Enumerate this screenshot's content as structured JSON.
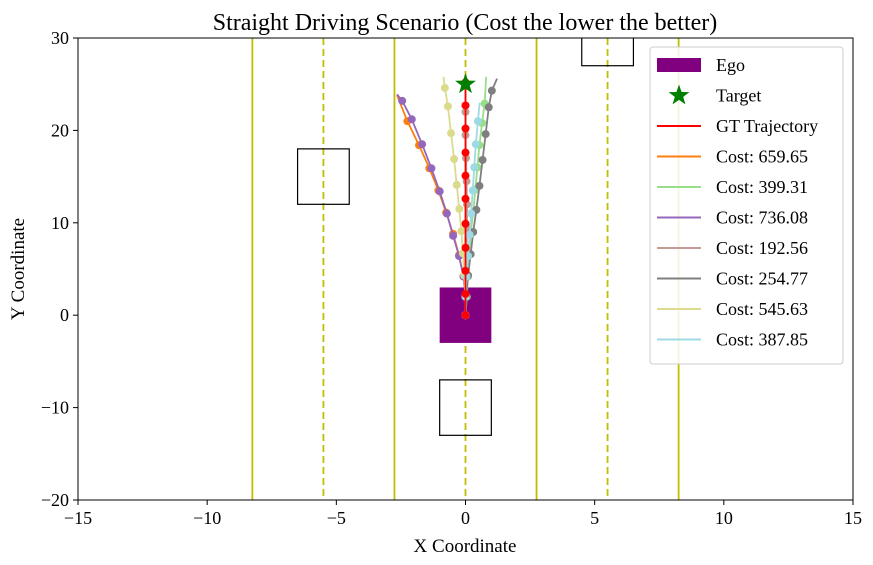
{
  "chart_data": {
    "type": "scatter",
    "title": "Straight Driving Scenario (Cost the lower the better)",
    "xlabel": "X Coordinate",
    "ylabel": "Y Coordinate",
    "xlim": [
      -15,
      15
    ],
    "ylim": [
      -20,
      30
    ],
    "xticks": [
      -15,
      -10,
      -5,
      0,
      5,
      10,
      15
    ],
    "xtick_labels": [
      "−15",
      "−10",
      "−5",
      "0",
      "5",
      "10",
      "15"
    ],
    "yticks": [
      -20,
      -10,
      0,
      10,
      20,
      30
    ],
    "ytick_labels": [
      "−20",
      "−10",
      "0",
      "10",
      "20",
      "30"
    ],
    "lane_lines": [
      {
        "x": -8.25,
        "style": "solid"
      },
      {
        "x": -5.5,
        "style": "dashed"
      },
      {
        "x": -2.75,
        "style": "solid"
      },
      {
        "x": 0,
        "style": "dashed"
      },
      {
        "x": 2.75,
        "style": "solid"
      },
      {
        "x": 5.5,
        "style": "dashed"
      },
      {
        "x": 8.25,
        "style": "solid"
      }
    ],
    "lane_color": "#bfbf00",
    "obstacles": [
      {
        "x": [
          -6.5,
          -4.5
        ],
        "y": [
          12,
          18
        ]
      },
      {
        "x": [
          -1,
          1
        ],
        "y": [
          -13,
          -7
        ]
      },
      {
        "x": [
          4.5,
          6.5
        ],
        "y": [
          27,
          33
        ]
      }
    ],
    "ego": {
      "label": "Ego",
      "x": [
        -1,
        1
      ],
      "y": [
        -3,
        3
      ],
      "color": "#800080"
    },
    "target": {
      "label": "Target",
      "x": 0,
      "y": 25,
      "color": "#008000"
    },
    "gt": {
      "label": "GT Trajectory",
      "color": "#ff0000",
      "x": [
        0,
        0,
        0,
        0,
        0,
        0,
        0,
        0,
        0,
        0,
        0,
        0
      ],
      "y": [
        0,
        2.3,
        4.8,
        7.3,
        9.9,
        12.6,
        15.1,
        17.6,
        20.2,
        22.7,
        25.2,
        26
      ]
    },
    "series": [
      {
        "label": "Cost: 659.65",
        "color": "#ff7f0e",
        "x": [
          0,
          0.02,
          -0.08,
          -0.25,
          -0.48,
          -0.75,
          -1.05,
          -1.4,
          -1.8,
          -2.25,
          -2.65
        ],
        "y": [
          0,
          2,
          4.2,
          6.5,
          8.8,
          11.1,
          13.5,
          15.9,
          18.4,
          21,
          23.8
        ]
      },
      {
        "label": "Cost: 399.31",
        "color": "#98df8a",
        "x": [
          0,
          0.05,
          0.1,
          0.15,
          0.2,
          0.3,
          0.38,
          0.46,
          0.54,
          0.64,
          0.74,
          0.8
        ],
        "y": [
          0,
          2,
          4.2,
          6.5,
          8.8,
          11.2,
          13.6,
          16,
          18.4,
          20.8,
          22.9,
          25.8
        ]
      },
      {
        "label": "Cost: 736.08",
        "color": "#9467bd",
        "x": [
          0,
          0,
          -0.08,
          -0.25,
          -0.48,
          -0.72,
          -1.0,
          -1.32,
          -1.68,
          -2.08,
          -2.45,
          -2.65
        ],
        "y": [
          0,
          2,
          4.2,
          6.4,
          8.6,
          11,
          13.4,
          15.9,
          18.5,
          21.2,
          23.2,
          23.9
        ]
      },
      {
        "label": "Cost: 192.56",
        "color": "#c49c94",
        "x": [
          0,
          0,
          0.02,
          0.04,
          0.06,
          0.06,
          0.04,
          0.02,
          0,
          0,
          0
        ],
        "y": [
          0,
          2.2,
          4.6,
          7,
          9.5,
          12,
          14.5,
          17,
          19.5,
          22,
          25
        ]
      },
      {
        "label": "Cost: 254.77",
        "color": "#7f7f7f",
        "x": [
          0,
          0.03,
          0.1,
          0.2,
          0.3,
          0.42,
          0.54,
          0.66,
          0.78,
          0.9,
          1.02,
          1.22
        ],
        "y": [
          0,
          2.1,
          4.3,
          6.6,
          9,
          11.4,
          14,
          16.8,
          19.6,
          22.5,
          24.3,
          25.6
        ]
      },
      {
        "label": "Cost: 545.63",
        "color": "#dbdb8d",
        "x": [
          0,
          0,
          -0.05,
          -0.1,
          -0.16,
          -0.24,
          -0.34,
          -0.44,
          -0.56,
          -0.68,
          -0.8,
          -0.85
        ],
        "y": [
          0,
          2,
          4.3,
          6.7,
          9.1,
          11.5,
          14.1,
          16.9,
          19.7,
          22.6,
          24.6,
          25.8
        ]
      },
      {
        "label": "Cost: 387.85",
        "color": "#9edae5",
        "x": [
          0,
          0,
          0.04,
          0.1,
          0.16,
          0.22,
          0.28,
          0.34,
          0.4,
          0.48,
          0.55
        ],
        "y": [
          0,
          2,
          4.2,
          6.4,
          8.7,
          11,
          13.5,
          16,
          18.5,
          21,
          23
        ]
      }
    ],
    "legend_position": "upper-right"
  }
}
